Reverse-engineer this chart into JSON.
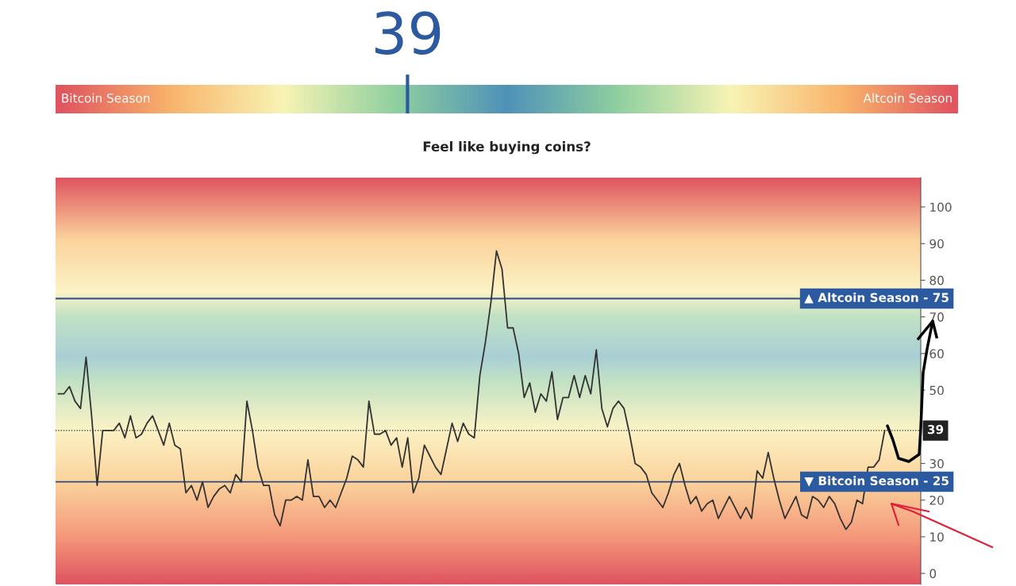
{
  "chart_data": [
    {
      "type": "other",
      "values": [
        39
      ],
      "data_labels": true,
      "color": "#2c5aa0",
      "annotations": [
        "Bitcoin Season",
        "Altcoin Season",
        "Feel like buying coins?"
      ]
    },
    {
      "type": "line",
      "color": "#333333",
      "ylim": [
        -3,
        108
      ],
      "yticks": [
        0,
        10,
        20,
        30,
        50,
        60,
        70,
        80,
        90,
        100
      ],
      "tick_labels": "y",
      "grid": false,
      "legend": false,
      "categories": [
        null,
        null,
        null,
        null,
        null,
        null,
        null,
        null,
        null,
        null,
        null,
        null,
        null,
        null,
        null,
        null,
        null,
        null,
        null,
        null,
        null,
        null,
        null,
        null,
        null,
        null,
        null,
        null,
        null,
        null,
        null,
        null,
        null,
        null,
        null,
        null,
        null,
        null,
        null,
        null,
        null,
        null,
        null,
        null,
        null,
        null,
        null,
        null,
        null,
        null,
        null,
        null,
        null,
        null,
        null,
        null,
        null,
        null,
        null,
        null,
        null,
        null,
        null,
        null,
        null,
        null,
        null,
        null,
        null,
        null,
        null,
        null,
        null,
        null,
        null,
        null,
        null,
        null,
        null,
        null,
        null,
        null,
        null,
        null,
        null,
        null,
        null,
        null,
        null,
        null,
        null,
        null,
        null,
        null,
        null,
        null,
        null,
        null,
        null,
        null,
        null,
        null,
        null,
        null,
        null,
        null,
        null,
        null,
        null,
        null,
        null,
        null,
        null,
        null,
        null,
        null,
        null,
        null,
        null,
        null,
        null,
        null,
        null,
        null,
        null,
        null,
        null,
        null,
        null,
        null,
        null,
        null,
        null,
        null,
        null,
        null,
        null,
        null,
        null,
        null,
        null,
        null,
        null,
        null,
        null,
        null,
        null,
        null,
        null,
        null,
        null,
        null,
        null,
        null,
        null,
        null
      ],
      "values": [
        49,
        49,
        51,
        47,
        45,
        59,
        43,
        24,
        39,
        39,
        39,
        41,
        37,
        43,
        37,
        38,
        41,
        43,
        39,
        35,
        41,
        35,
        34,
        22,
        24,
        20,
        25,
        18,
        21,
        23,
        24,
        22,
        27,
        25,
        47,
        39,
        29,
        24,
        24,
        16,
        13,
        20,
        20,
        21,
        20,
        31,
        21,
        21,
        18,
        20,
        18,
        22,
        26,
        32,
        31,
        29,
        47,
        38,
        38,
        39,
        35,
        37,
        29,
        37,
        22,
        26,
        35,
        32,
        29,
        27,
        34,
        41,
        36,
        41,
        38,
        37,
        54,
        63,
        74,
        88,
        83,
        67,
        67,
        60,
        48,
        52,
        44,
        49,
        47,
        55,
        42,
        48,
        48,
        54,
        48,
        54,
        49,
        61,
        45,
        40,
        45,
        47,
        45,
        38,
        30,
        29,
        27,
        22,
        20,
        18,
        22,
        27,
        30,
        24,
        19,
        21,
        17,
        19,
        20,
        15,
        18,
        21,
        18,
        15,
        18,
        15,
        28,
        26,
        33,
        26,
        20,
        15,
        18,
        21,
        16,
        15,
        21,
        20,
        18,
        21,
        19,
        15,
        12,
        14,
        20,
        19,
        29,
        29,
        31,
        39,
        null,
        null,
        null,
        null,
        null,
        null
      ],
      "ref_lines": [
        {
          "axis": "y",
          "value": 75,
          "label": "▲ Altcoin Season - 75",
          "color": "#2c4a7c",
          "line_style": "solid"
        },
        {
          "axis": "y",
          "value": 25,
          "label": "▼ Bitcoin Season - 25",
          "color": "#2c4a7c",
          "line_style": "solid"
        },
        {
          "axis": "y",
          "value": 39,
          "label": "39",
          "color": "#222222",
          "line_style": "dotted"
        }
      ]
    }
  ]
}
